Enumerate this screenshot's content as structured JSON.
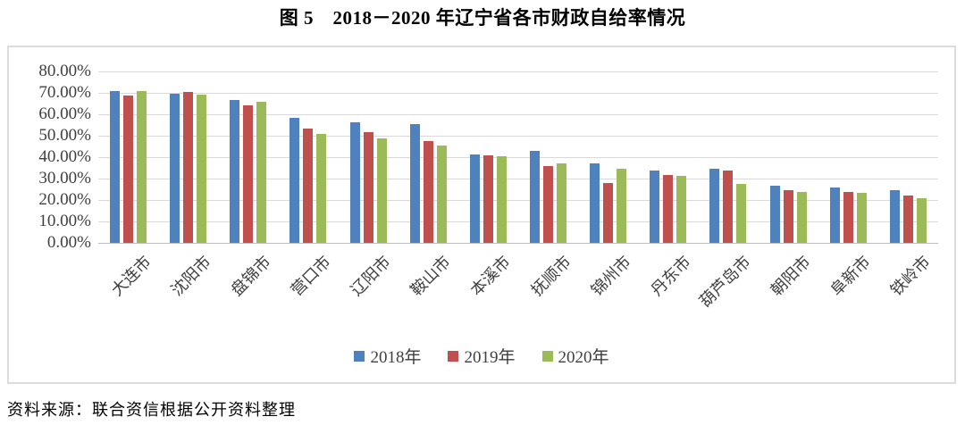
{
  "figure": {
    "title": "图 5　2018－2020 年辽宁省各市财政自给率情况",
    "source_note": "资料来源：联合资信根据公开资料整理"
  },
  "chart_data": {
    "type": "bar",
    "title": "图 5　2018－2020 年辽宁省各市财政自给率情况",
    "xlabel": "",
    "ylabel": "",
    "ylim": [
      0,
      80
    ],
    "ytick_labels": [
      "80.00%",
      "70.00%",
      "60.00%",
      "50.00%",
      "40.00%",
      "30.00%",
      "20.00%",
      "10.00%",
      "0.00%"
    ],
    "grid": true,
    "legend_position": "bottom",
    "categories": [
      "大连市",
      "沈阳市",
      "盘锦市",
      "营口市",
      "辽阳市",
      "鞍山市",
      "本溪市",
      "抚顺市",
      "锦州市",
      "丹东市",
      "葫芦岛市",
      "朝阳市",
      "阜新市",
      "铁岭市"
    ],
    "series": [
      {
        "name": "2018年",
        "color": "#4F81BD",
        "values": [
          70.8,
          69.4,
          66.7,
          58.3,
          56.4,
          55.3,
          41.4,
          43.0,
          37.2,
          33.9,
          34.4,
          26.5,
          26.0,
          24.6
        ]
      },
      {
        "name": "2019年",
        "color": "#C0504D",
        "values": [
          68.6,
          70.5,
          64.0,
          53.2,
          51.8,
          47.4,
          40.8,
          36.0,
          28.0,
          31.8,
          33.8,
          24.4,
          23.9,
          22.0
        ]
      },
      {
        "name": "2020年",
        "color": "#9BBB59",
        "values": [
          71.0,
          69.3,
          65.8,
          50.8,
          48.9,
          45.3,
          40.4,
          37.2,
          34.7,
          31.4,
          27.6,
          23.6,
          23.5,
          21.0
        ]
      }
    ],
    "colors": {
      "gridline": "#d9d9d9",
      "axis_line": "#bfbfbf",
      "tick_text": "#3f3f3f",
      "frame_border": "#dcdcdc"
    }
  }
}
